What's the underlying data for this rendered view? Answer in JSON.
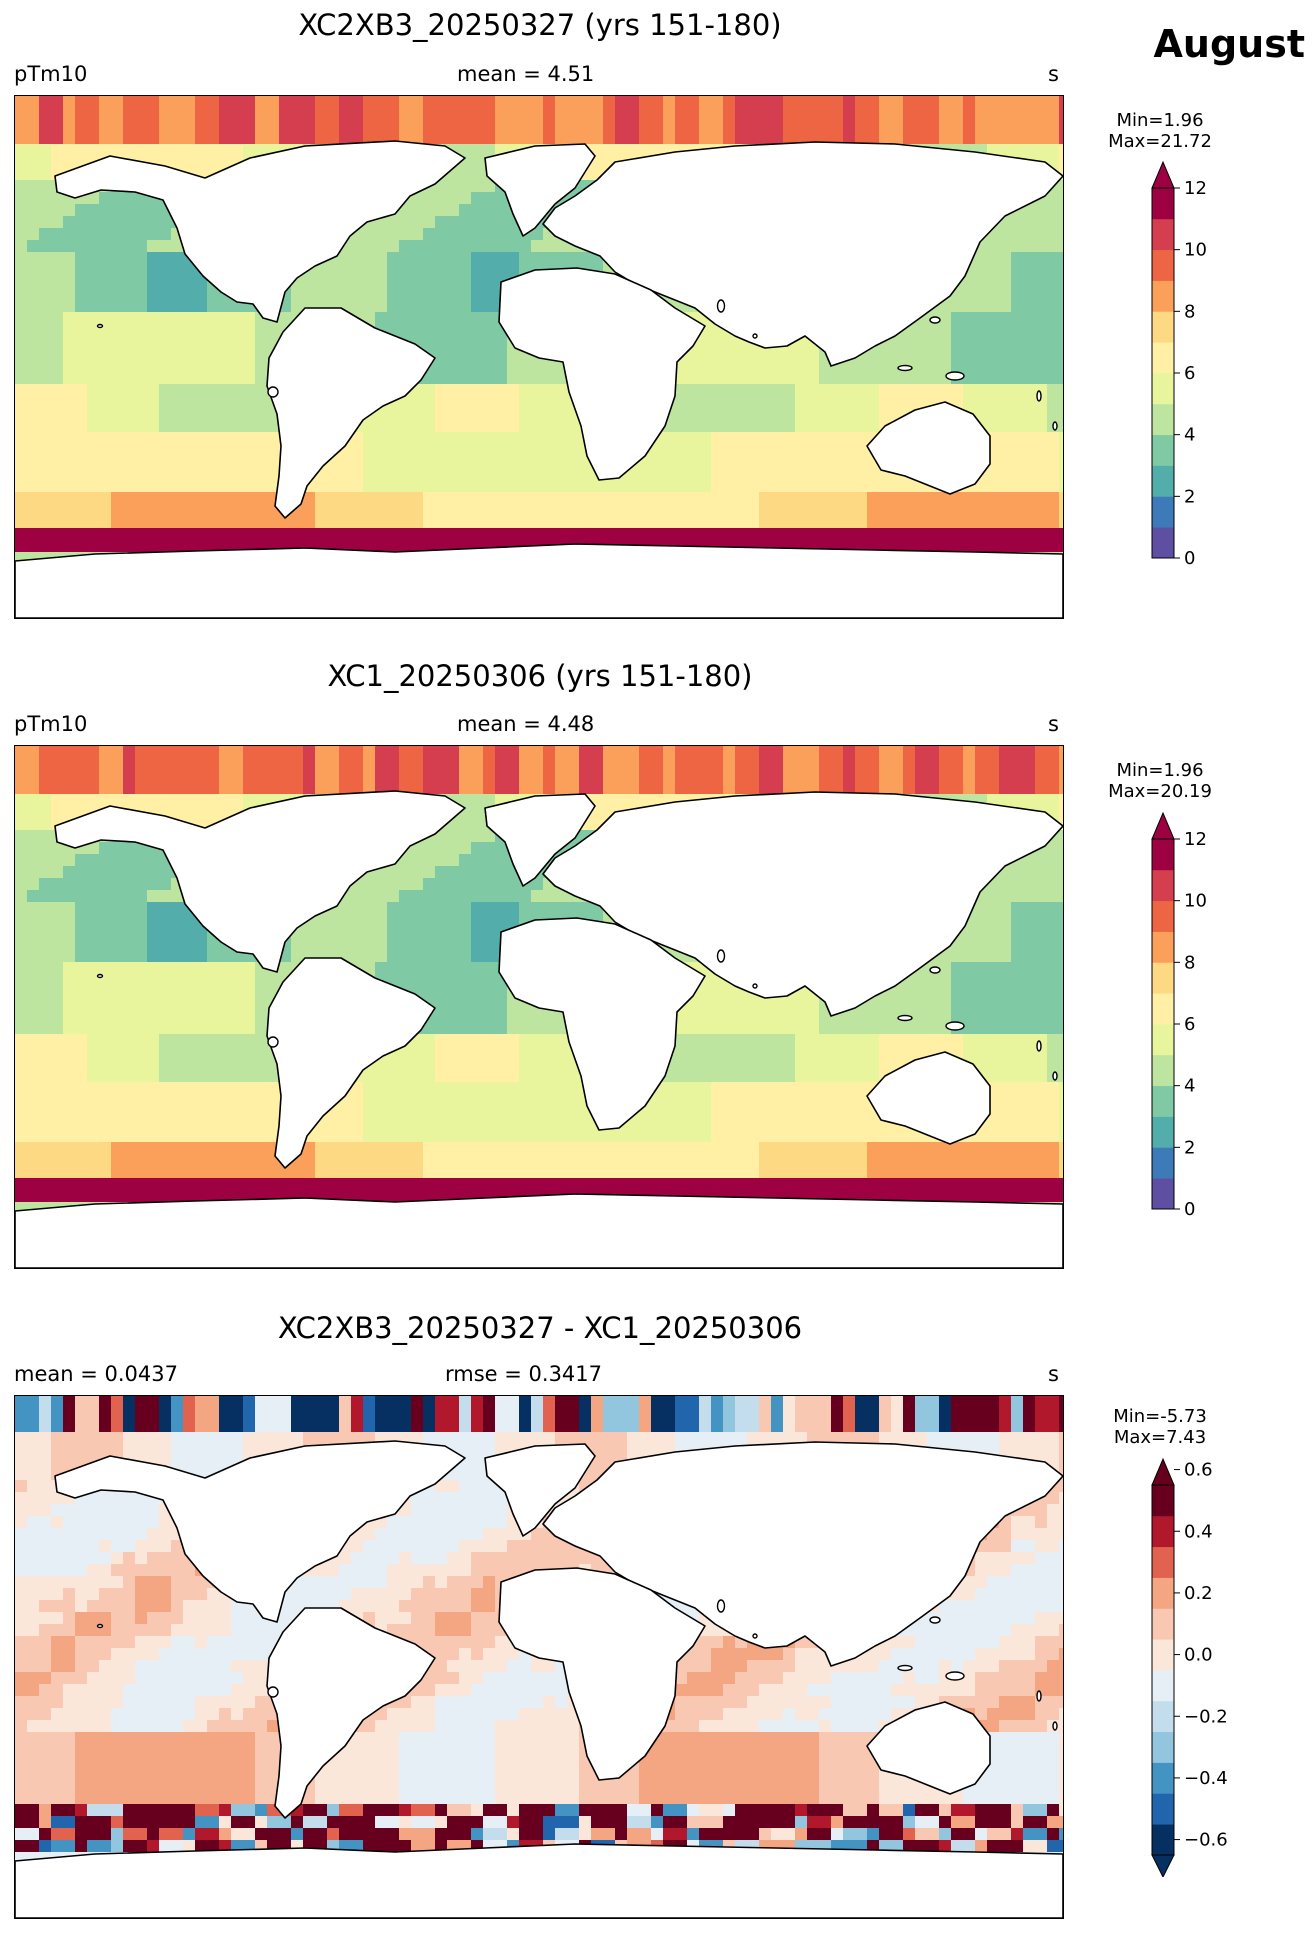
{
  "month_label": "August",
  "units": "s",
  "panels": [
    {
      "title": "XC2XB3_20250327 (yrs 151-180)",
      "left_label": "pTm10",
      "center_label": "mean = 4.51",
      "right_label": "s",
      "min_label": "Min=1.96",
      "max_label": "Max=21.72",
      "colormap": "sequential",
      "colorbar_ticks": [
        "0",
        "2",
        "4",
        "6",
        "8",
        "10",
        "12"
      ]
    },
    {
      "title": "XC1_20250306 (yrs 151-180)",
      "left_label": "pTm10",
      "center_label": "mean = 4.48",
      "right_label": "s",
      "min_label": "Min=1.96",
      "max_label": "Max=20.19",
      "colormap": "sequential",
      "colorbar_ticks": [
        "0",
        "2",
        "4",
        "6",
        "8",
        "10",
        "12"
      ]
    },
    {
      "title": "XC2XB3_20250327 - XC1_20250306",
      "left_label": "mean = 0.0437",
      "center_label": "rmse = 0.3417",
      "right_label": "s",
      "min_label": "Min=-5.73",
      "max_label": "Max=7.43",
      "colormap": "diverging",
      "colorbar_ticks": [
        "−0.6",
        "−0.4",
        "−0.2",
        "0.0",
        "0.2",
        "0.4",
        "0.6"
      ]
    }
  ],
  "colors": {
    "sequential": [
      "#5e4fa2",
      "#3d7ab8",
      "#53aeab",
      "#7fc9a4",
      "#bde5a0",
      "#e8f59c",
      "#fff0a6",
      "#fed983",
      "#fba05b",
      "#ee6544",
      "#d53e4f",
      "#9e0142"
    ],
    "diverging": [
      "#053061",
      "#2166ac",
      "#4393c3",
      "#92c5de",
      "#c3ddec",
      "#e5eff5",
      "#fbe6da",
      "#f9c8b2",
      "#f4a582",
      "#e0624f",
      "#b2182b",
      "#67001f"
    ]
  }
}
